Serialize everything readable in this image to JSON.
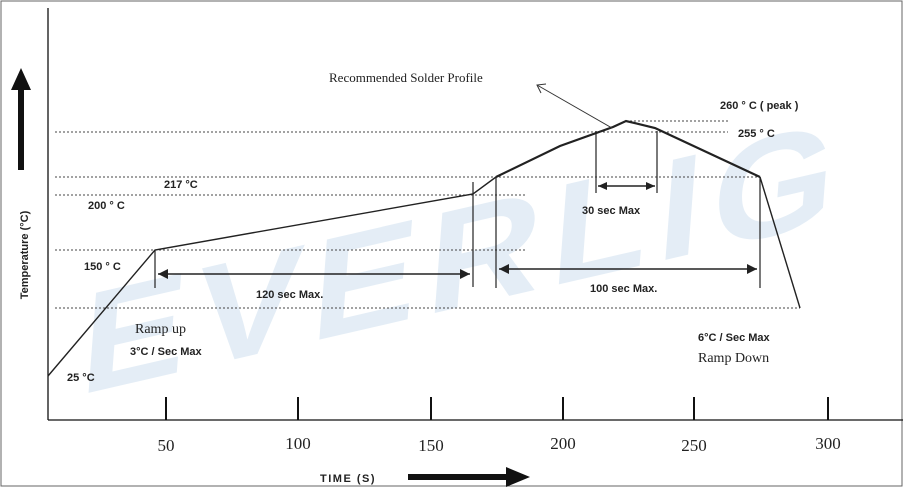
{
  "chart_data": {
    "type": "line",
    "title": "Recommended Solder Profile",
    "xlabel": "TIME (S)",
    "ylabel": "Temperature (°C)",
    "x_ticks": [
      "50",
      "100",
      "150",
      "200",
      "250",
      "300"
    ],
    "series": [
      {
        "x": [
          0,
          46,
          166,
          174,
          197,
          220,
          225,
          235,
          273,
          289
        ],
        "y": [
          25,
          150,
          200,
          217,
          238,
          255,
          260,
          255,
          217,
          150
        ]
      }
    ],
    "temperature_labels": {
      "t25": "25 °C",
      "t150": "150 ° C",
      "t200": "200 ° C",
      "t217": "217 °C",
      "t255": "255 ° C",
      "t260": "260 ° C ( peak )"
    },
    "durations": {
      "preheat": "120 sec Max.",
      "above_liquidus": "100 sec Max.",
      "near_peak": "30 sec Max"
    },
    "ramp_up": {
      "line1": "Ramp up",
      "line2": "3°C / Sec Max"
    },
    "ramp_down": {
      "line1": "6°C / Sec Max",
      "line2": "Ramp Down"
    },
    "watermark": "EVERLIG"
  }
}
